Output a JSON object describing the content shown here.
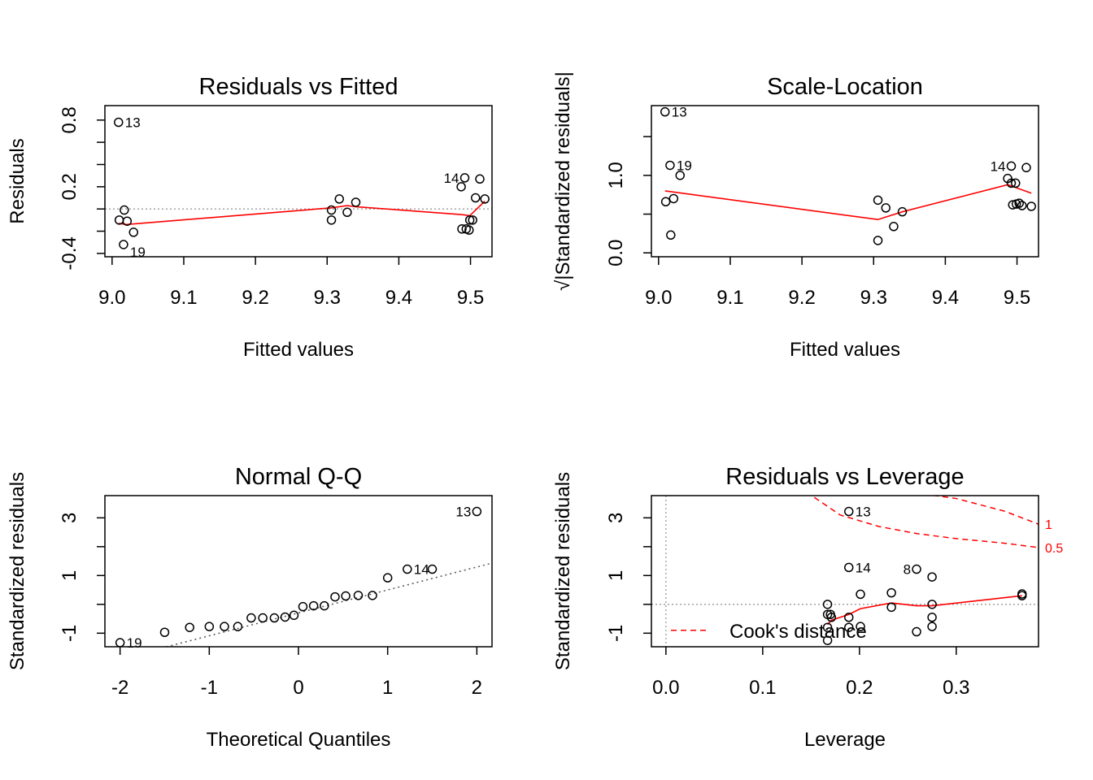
{
  "colors": {
    "axis": "#000000",
    "smooth": "#ff0000",
    "ref": "#9a9a9a",
    "qq": "#555555",
    "cook": "#ff0000"
  },
  "chart_data": [
    {
      "type": "scatter",
      "title": "Residuals vs Fitted",
      "xlabel": "Fitted values",
      "ylabel": "Residuals",
      "xlim": [
        8.99,
        9.53
      ],
      "ylim": [
        -0.43,
        0.93
      ],
      "xticks": [
        9.0,
        9.1,
        9.2,
        9.3,
        9.4,
        9.5
      ],
      "xtick_labels": [
        "9.0",
        "9.1",
        "9.2",
        "9.3",
        "9.4",
        "9.5"
      ],
      "yticks": [
        -0.4,
        0.2,
        0.8
      ],
      "ytick_labels": [
        "-0.4",
        "0.2",
        "0.8"
      ],
      "yminor": [
        -0.2,
        0.0,
        0.4,
        0.6
      ],
      "hline": 0.0,
      "points": [
        {
          "x": 9.009,
          "y": 0.78
        },
        {
          "x": 9.016,
          "y": -0.32
        },
        {
          "x": 9.03,
          "y": -0.21
        },
        {
          "x": 9.01,
          "y": -0.1
        },
        {
          "x": 9.017,
          "y": -0.01
        },
        {
          "x": 9.021,
          "y": -0.11
        },
        {
          "x": 9.306,
          "y": -0.01
        },
        {
          "x": 9.306,
          "y": -0.1
        },
        {
          "x": 9.317,
          "y": 0.09
        },
        {
          "x": 9.328,
          "y": -0.03
        },
        {
          "x": 9.34,
          "y": 0.06
        },
        {
          "x": 9.487,
          "y": 0.2
        },
        {
          "x": 9.492,
          "y": 0.28
        },
        {
          "x": 9.488,
          "y": -0.18
        },
        {
          "x": 9.494,
          "y": -0.18
        },
        {
          "x": 9.498,
          "y": -0.19
        },
        {
          "x": 9.499,
          "y": -0.1
        },
        {
          "x": 9.503,
          "y": -0.1
        },
        {
          "x": 9.507,
          "y": 0.1
        },
        {
          "x": 9.513,
          "y": 0.27
        },
        {
          "x": 9.52,
          "y": 0.09
        }
      ],
      "labels": [
        {
          "text": "13",
          "x": 9.009,
          "y": 0.78,
          "pos": "right"
        },
        {
          "text": "19",
          "x": 9.016,
          "y": -0.32,
          "pos": "right-below"
        },
        {
          "text": "14",
          "x": 9.492,
          "y": 0.28,
          "pos": "left"
        }
      ],
      "smooth": {
        "x": [
          9.009,
          9.02,
          9.306,
          9.328,
          9.34,
          9.487,
          9.499,
          9.52
        ],
        "y": [
          -0.13,
          -0.14,
          0.01,
          0.03,
          0.02,
          -0.05,
          -0.06,
          0.07
        ]
      }
    },
    {
      "type": "scatter",
      "title": "Scale-Location",
      "xlabel": "Fitted values",
      "ylabel": "√|Standardized residuals|",
      "xlim": [
        8.99,
        9.53
      ],
      "ylim": [
        -0.05,
        1.9
      ],
      "xticks": [
        9.0,
        9.1,
        9.2,
        9.3,
        9.4,
        9.5
      ],
      "xtick_labels": [
        "9.0",
        "9.1",
        "9.2",
        "9.3",
        "9.4",
        "9.5"
      ],
      "yticks": [
        0.0,
        1.0
      ],
      "ytick_labels": [
        "0.0",
        "1.0"
      ],
      "yminor": [
        0.5,
        1.5
      ],
      "points": [
        {
          "x": 9.009,
          "y": 1.82
        },
        {
          "x": 9.016,
          "y": 1.13
        },
        {
          "x": 9.03,
          "y": 1.0
        },
        {
          "x": 9.01,
          "y": 0.66
        },
        {
          "x": 9.021,
          "y": 0.7
        },
        {
          "x": 9.017,
          "y": 0.23
        },
        {
          "x": 9.306,
          "y": 0.68
        },
        {
          "x": 9.317,
          "y": 0.58
        },
        {
          "x": 9.34,
          "y": 0.53
        },
        {
          "x": 9.328,
          "y": 0.34
        },
        {
          "x": 9.306,
          "y": 0.16
        },
        {
          "x": 9.492,
          "y": 1.12
        },
        {
          "x": 9.487,
          "y": 0.96
        },
        {
          "x": 9.492,
          "y": 0.9
        },
        {
          "x": 9.498,
          "y": 0.9
        },
        {
          "x": 9.494,
          "y": 0.62
        },
        {
          "x": 9.499,
          "y": 0.63
        },
        {
          "x": 9.503,
          "y": 0.64
        },
        {
          "x": 9.507,
          "y": 0.61
        },
        {
          "x": 9.513,
          "y": 1.1
        },
        {
          "x": 9.52,
          "y": 0.6
        }
      ],
      "labels": [
        {
          "text": "13",
          "x": 9.009,
          "y": 1.82,
          "pos": "right"
        },
        {
          "text": "19",
          "x": 9.016,
          "y": 1.13,
          "pos": "right"
        },
        {
          "text": "14",
          "x": 9.492,
          "y": 1.12,
          "pos": "left"
        }
      ],
      "smooth": {
        "x": [
          9.009,
          9.306,
          9.34,
          9.487,
          9.52
        ],
        "y": [
          0.8,
          0.43,
          0.53,
          0.88,
          0.77
        ]
      }
    },
    {
      "type": "scatter",
      "title": "Normal Q-Q",
      "xlabel": "Theoretical Quantiles",
      "ylabel": "Standardized residuals",
      "xlim": [
        -2.17,
        2.17
      ],
      "ylim": [
        -1.47,
        3.77
      ],
      "xticks": [
        -2,
        -1,
        0,
        1,
        2
      ],
      "xtick_labels": [
        "-2",
        "-1",
        "0",
        "1",
        "2"
      ],
      "yticks": [
        -1,
        1,
        3
      ],
      "ytick_labels": [
        "-1",
        "1",
        "3"
      ],
      "yminor": [
        0,
        2
      ],
      "refline": {
        "x": [
          -2.17,
          2.17
        ],
        "y": [
          -2.02,
          1.43
        ]
      },
      "points": [
        {
          "x": -2.0,
          "y": -1.33
        },
        {
          "x": -1.5,
          "y": -0.97
        },
        {
          "x": -1.22,
          "y": -0.8
        },
        {
          "x": -1.0,
          "y": -0.77
        },
        {
          "x": -0.83,
          "y": -0.77
        },
        {
          "x": -0.68,
          "y": -0.77
        },
        {
          "x": -0.53,
          "y": -0.47
        },
        {
          "x": -0.4,
          "y": -0.47
        },
        {
          "x": -0.27,
          "y": -0.47
        },
        {
          "x": -0.15,
          "y": -0.44
        },
        {
          "x": -0.05,
          "y": -0.38
        },
        {
          "x": 0.05,
          "y": -0.08
        },
        {
          "x": 0.17,
          "y": -0.05
        },
        {
          "x": 0.29,
          "y": -0.05
        },
        {
          "x": 0.41,
          "y": 0.26
        },
        {
          "x": 0.53,
          "y": 0.29
        },
        {
          "x": 0.67,
          "y": 0.31
        },
        {
          "x": 0.83,
          "y": 0.31
        },
        {
          "x": 1.0,
          "y": 0.92
        },
        {
          "x": 1.22,
          "y": 1.22
        },
        {
          "x": 1.5,
          "y": 1.22
        },
        {
          "x": 2.0,
          "y": 3.22
        }
      ],
      "labels": [
        {
          "text": "19",
          "x": -2.0,
          "y": -1.33,
          "pos": "right"
        },
        {
          "text": "14",
          "x": 1.22,
          "y": 1.22,
          "pos": "right"
        },
        {
          "text": "13",
          "x": 2.0,
          "y": 3.22,
          "pos": "left"
        }
      ]
    },
    {
      "type": "scatter",
      "title": "Residuals vs Leverage",
      "xlabel": "Leverage",
      "ylabel": "Standardized residuals",
      "xlim": [
        -0.015,
        0.385
      ],
      "ylim": [
        -1.47,
        3.77
      ],
      "xticks": [
        0.0,
        0.1,
        0.2,
        0.3
      ],
      "xtick_labels": [
        "0.0",
        "0.1",
        "0.2",
        "0.3"
      ],
      "yticks": [
        -1,
        1,
        3
      ],
      "ytick_labels": [
        "-1",
        "1",
        "3"
      ],
      "yminor": [
        0,
        2
      ],
      "hline": 0,
      "vline": 0,
      "points": [
        {
          "x": 0.189,
          "y": 3.22
        },
        {
          "x": 0.189,
          "y": 1.28
        },
        {
          "x": 0.259,
          "y": 1.22
        },
        {
          "x": 0.275,
          "y": 0.95
        },
        {
          "x": 0.201,
          "y": 0.35
        },
        {
          "x": 0.233,
          "y": 0.4
        },
        {
          "x": 0.275,
          "y": 0.0
        },
        {
          "x": 0.233,
          "y": -0.1
        },
        {
          "x": 0.167,
          "y": 0.0
        },
        {
          "x": 0.167,
          "y": -0.35
        },
        {
          "x": 0.17,
          "y": -0.35
        },
        {
          "x": 0.171,
          "y": -0.45
        },
        {
          "x": 0.189,
          "y": -0.45
        },
        {
          "x": 0.275,
          "y": -0.45
        },
        {
          "x": 0.167,
          "y": -0.8
        },
        {
          "x": 0.189,
          "y": -0.8
        },
        {
          "x": 0.201,
          "y": -0.77
        },
        {
          "x": 0.275,
          "y": -0.77
        },
        {
          "x": 0.259,
          "y": -0.95
        },
        {
          "x": 0.167,
          "y": -1.25
        },
        {
          "x": 0.368,
          "y": 0.36
        },
        {
          "x": 0.368,
          "y": 0.3
        }
      ],
      "labels": [
        {
          "text": "13",
          "x": 0.189,
          "y": 3.22,
          "pos": "right"
        },
        {
          "text": "14",
          "x": 0.189,
          "y": 1.28,
          "pos": "right"
        },
        {
          "text": "8",
          "x": 0.259,
          "y": 1.22,
          "pos": "left"
        }
      ],
      "smooth": {
        "x": [
          0.167,
          0.171,
          0.189,
          0.201,
          0.233,
          0.259,
          0.275,
          0.368
        ],
        "y": [
          -0.7,
          -0.55,
          -0.35,
          -0.15,
          0.05,
          -0.05,
          -0.05,
          0.3
        ]
      },
      "cooks_distance": {
        "legend": "Cook's distance",
        "levels": [
          {
            "label": "1",
            "x": [
              0.145,
              0.2,
              0.25,
              0.3,
              0.35,
              0.385
            ],
            "y": [
              3.9,
              3.9,
              3.9,
              3.67,
              3.23,
              2.78
            ]
          },
          {
            "label": "0.5",
            "x": [
              0.145,
              0.18,
              0.22,
              0.26,
              0.3,
              0.35,
              0.385
            ],
            "y": [
              3.9,
              3.1,
              2.7,
              2.45,
              2.28,
              2.12,
              1.97
            ]
          }
        ]
      }
    }
  ]
}
